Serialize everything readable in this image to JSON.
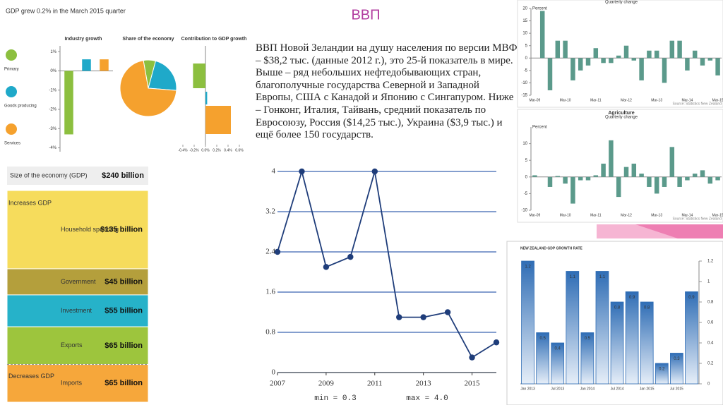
{
  "slide": {
    "title": "ВВП",
    "text": "ВВП Новой Зеландии на душу населения по версии МВФ – $38,2 тыс. (данные 2012 г.), это 25-й показатель в мире. Выше – ряд небольших нефтедобывающих стран, благополучные государства Северной и Западной Европы, США с Канадой и Японию с Сингапуром. Ниже – Гонконг, Италия, Тайвань, средний показатель по Евросоюзу, Россия ($14,25 тыс.), Украина ($3,9 тыс.) и ещё более 150 государств."
  },
  "infographic": {
    "title": "GDP grew 0.2% in the March 2015 quarter",
    "categories": [
      "Primary",
      "Goods producing",
      "Services"
    ],
    "colors": [
      "#8cbf3f",
      "#1fa9c9",
      "#f5a12e"
    ]
  },
  "chart_data": [
    {
      "type": "bar",
      "title": "Industry growth",
      "values": [
        -3.3,
        0.6,
        0.6
      ],
      "ylim": [
        -4.2,
        1.3
      ],
      "yticks": [
        {
          "value": 1,
          "label": "1%"
        },
        {
          "value": 0,
          "label": "0%"
        },
        {
          "value": -1,
          "label": "-1%"
        },
        {
          "value": -2,
          "label": "-2%"
        },
        {
          "value": -3,
          "label": "-3%"
        },
        {
          "value": -4,
          "label": "-4%"
        }
      ],
      "grid": false
    },
    {
      "type": "pie",
      "title": "Share of the economy",
      "values": [
        7,
        22,
        71
      ]
    },
    {
      "type": "hbar",
      "title": "Contribution to GDP growth",
      "values": [
        -0.22,
        0.03,
        0.45
      ],
      "xlim": [
        -0.4,
        0.6
      ],
      "xticks": [
        {
          "value": -0.4,
          "label": "-0.4%"
        },
        {
          "value": -0.2,
          "label": "-0.2%"
        },
        {
          "value": 0,
          "label": "0.0%"
        },
        {
          "value": 0.2,
          "label": "0.2%"
        },
        {
          "value": 0.4,
          "label": "0.4%"
        },
        {
          "value": 0.6,
          "label": "0.6%"
        }
      ]
    },
    {
      "type": "stacked",
      "title": "Size of the economy (GDP)",
      "total": 240,
      "total_label": "$240 billion",
      "groups": [
        "Increases GDP",
        "Decreases GDP"
      ],
      "categories": [
        "Household spending",
        "Government",
        "Investment",
        "Exports",
        "Imports"
      ],
      "values": [
        135,
        45,
        55,
        65,
        65
      ],
      "value_labels": [
        "$135 billion",
        "$45 billion",
        "$55 billion",
        "$65 billion",
        "$65 billion"
      ],
      "colors": [
        "#f6dc5c",
        "#b49f3c",
        "#26b2c9",
        "#9dc53d",
        "#f6a73b"
      ]
    },
    {
      "type": "line",
      "x": [
        2007,
        2008,
        2009,
        2010,
        2011,
        2012,
        2013,
        2014,
        2015,
        2016
      ],
      "values": [
        2.4,
        4.0,
        2.1,
        2.3,
        4.0,
        1.1,
        1.1,
        1.2,
        0.3,
        0.6
      ],
      "xlim": [
        2007,
        2016
      ],
      "ylim": [
        0,
        4
      ],
      "yticks": [
        0,
        0.8,
        1.6,
        2.4,
        3.2,
        4
      ],
      "xticks": [
        2007,
        2009,
        2011,
        2013,
        2015
      ],
      "color": "#1f3d7a",
      "grid": true,
      "annotations": [
        "min = 0.3",
        "max = 4.0"
      ]
    },
    {
      "type": "bar",
      "subtitle": "Quarterly change",
      "ylabel": "Percent",
      "source": "Source: Statistics New Zealand",
      "categories": [
        "Mar-09",
        null,
        null,
        null,
        "Mar-10",
        null,
        null,
        null,
        "Mar-11",
        null,
        null,
        null,
        "Mar-12",
        null,
        null,
        null,
        "Mar-13",
        null,
        null,
        null,
        "Mar-14",
        null,
        null,
        null,
        "Mar-15"
      ],
      "values": [
        0,
        19,
        -13,
        7,
        7,
        -9,
        -5,
        -3,
        4,
        -2,
        -2,
        1,
        5,
        -1,
        -9,
        3,
        3,
        -10,
        7,
        7,
        -5,
        3,
        -3,
        -1,
        -7
      ],
      "ylim": [
        -15,
        20
      ],
      "yticks": [
        -15,
        -10,
        -5,
        0,
        5,
        10,
        15,
        20
      ],
      "color": "#5b9a8b",
      "grid": false
    },
    {
      "type": "bar",
      "title": "Agriculture",
      "subtitle": "Quarterly change",
      "ylabel": "Percent",
      "source": "Source: Statistics New Zealand",
      "categories": [
        "Mar-09",
        null,
        null,
        null,
        "Mar-10",
        null,
        null,
        null,
        "Mar-11",
        null,
        null,
        null,
        "Mar-12",
        null,
        null,
        null,
        "Mar-13",
        null,
        null,
        null,
        "Mar-14",
        null,
        null,
        null,
        "Mar-15"
      ],
      "values": [
        0.5,
        0,
        -3,
        0.3,
        -2,
        -8,
        -1,
        -1,
        0.5,
        4,
        11,
        -6,
        3,
        4,
        1,
        -3,
        -5,
        -3,
        9,
        -3,
        -1,
        1,
        2,
        -2,
        -1
      ],
      "ylim": [
        -10,
        15
      ],
      "yticks": [
        -10,
        -5,
        0,
        5,
        10
      ],
      "color": "#5b9a8b",
      "grid": false
    },
    {
      "type": "bar",
      "title": "NEW ZEALAND GDP GROWTH RATE",
      "categories": [
        "Jan 2013",
        null,
        "Jul 2013",
        null,
        "Jan 2014",
        null,
        "Jul 2014",
        null,
        "Jan 2015",
        null,
        "Jul 2015",
        null
      ],
      "values": [
        1.2,
        0.5,
        0.4,
        1.1,
        0.5,
        1.1,
        0.8,
        0.9,
        0.8,
        0.2,
        0.3,
        0.9
      ],
      "ylim": [
        0,
        1.2
      ],
      "yticks": [
        0,
        0.2,
        0.4,
        0.6,
        0.8,
        1,
        1.2
      ],
      "color": "#2f6db5",
      "grid": false,
      "data_labels": true,
      "axis_side": "right"
    }
  ]
}
